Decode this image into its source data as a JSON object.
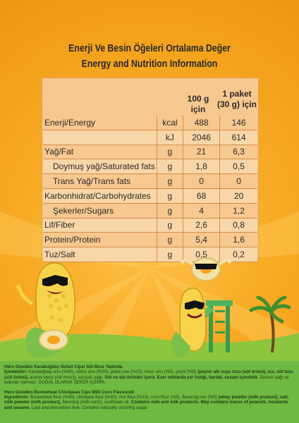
{
  "title_tr": "Enerji Ve Besin Öğeleri Ortalama Değer",
  "title_en": "Energy and Nutrition Information",
  "columns": {
    "per100": "100 g için",
    "per_pack_line1": "1 paket",
    "per_pack_line2": "(30 g) için"
  },
  "rows": [
    {
      "label": "Enerji/Energy",
      "unit": "kcal",
      "v100": "488",
      "vpack": "146"
    },
    {
      "label": "",
      "unit": "kJ",
      "v100": "2046",
      "vpack": "614"
    },
    {
      "label": "Yağ/Fat",
      "unit": "g",
      "v100": "21",
      "vpack": "6,3"
    },
    {
      "label": "Doymuş yağ/Saturated fats",
      "unit": "g",
      "v100": "1,8",
      "vpack": "0,5"
    },
    {
      "label": "Trans Yağ/Trans fats",
      "unit": "g",
      "v100": "0",
      "vpack": "0"
    },
    {
      "label": "Karbonhidrat/Carbohydrates",
      "unit": "g",
      "v100": "68",
      "vpack": "20"
    },
    {
      "label": "Şekerler/Sugars",
      "unit": "g",
      "v100": "4",
      "vpack": "1,2"
    },
    {
      "label": "Lif/Fiber",
      "unit": "g",
      "v100": "2,6",
      "vpack": "0,8"
    },
    {
      "label": "Protein/Protein",
      "unit": "g",
      "v100": "5,4",
      "vpack": "1,6"
    },
    {
      "label": "Tuz/Salt",
      "unit": "g",
      "v100": "0,5",
      "vpack": "0,2"
    }
  ],
  "ingredients_tr": {
    "heading": "Hero Goodies Karabuğday Nohut Cipsi Süt Mısır Tadında",
    "label": "İçindekiler:",
    "text": " Karabuğday unu (%40), nohut unu (%30), pirinç unu (%15), mısır unu (%5), çeşni (%5) ",
    "bold1": "(peynir altı suyu tozu (süt ürünü), tuz, süt tozu (süt ürünü),",
    "text2": " aroma verici (süt mısır)), ayçiçek yağı. ",
    "bold2": "Süt ve süt ürünleri içerir. Eser miktarda yer fıstığı, hardal, susam içerebilir.",
    "text3": " Domuz yağı ve katkıları içermez. DOĞAL OLARAK ŞEKER İÇERİR."
  },
  "ingredients_en": {
    "heading": "Hero Goodies Buckwheat Chickpeas Cips Milk Corn Flavoured",
    "label": "Ingredients:",
    "text": " Buckwheat flour (%40), chickpea flour (%30), rice flour (%15), corn flour (%5), flavoring mix (%5) ",
    "bold1": "(whey powder (milk product), salt, milk powder (milk product),",
    "text2": " flavoring (milk corn)), sunflower oil. ",
    "bold2": "Contains milk and milk products. May contains traces of peanuts, mustards and sesame.",
    "text3": " Lard and derivatives free. Contains naturally occuring sugar."
  },
  "colors": {
    "panel": "#f7c88f",
    "alt_row": "#f9d6a8",
    "background": "#f4a21c",
    "green": "#6fb841"
  }
}
